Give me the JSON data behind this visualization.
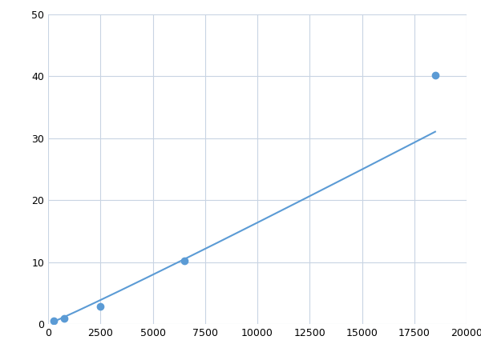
{
  "x": [
    250,
    750,
    2500,
    6500,
    18500
  ],
  "y": [
    0.5,
    0.85,
    2.8,
    10.2,
    40.2
  ],
  "line_color": "#5B9BD5",
  "marker_color": "#5B9BD5",
  "marker_size": 6,
  "line_width": 1.5,
  "xlim": [
    0,
    20000
  ],
  "ylim": [
    0,
    50
  ],
  "xticks": [
    0,
    2500,
    5000,
    7500,
    10000,
    12500,
    15000,
    17500,
    20000
  ],
  "yticks": [
    0,
    10,
    20,
    30,
    40,
    50
  ],
  "grid_color": "#C8D4E3",
  "background_color": "#FFFFFF",
  "figsize": [
    6.0,
    4.5
  ],
  "dpi": 100
}
